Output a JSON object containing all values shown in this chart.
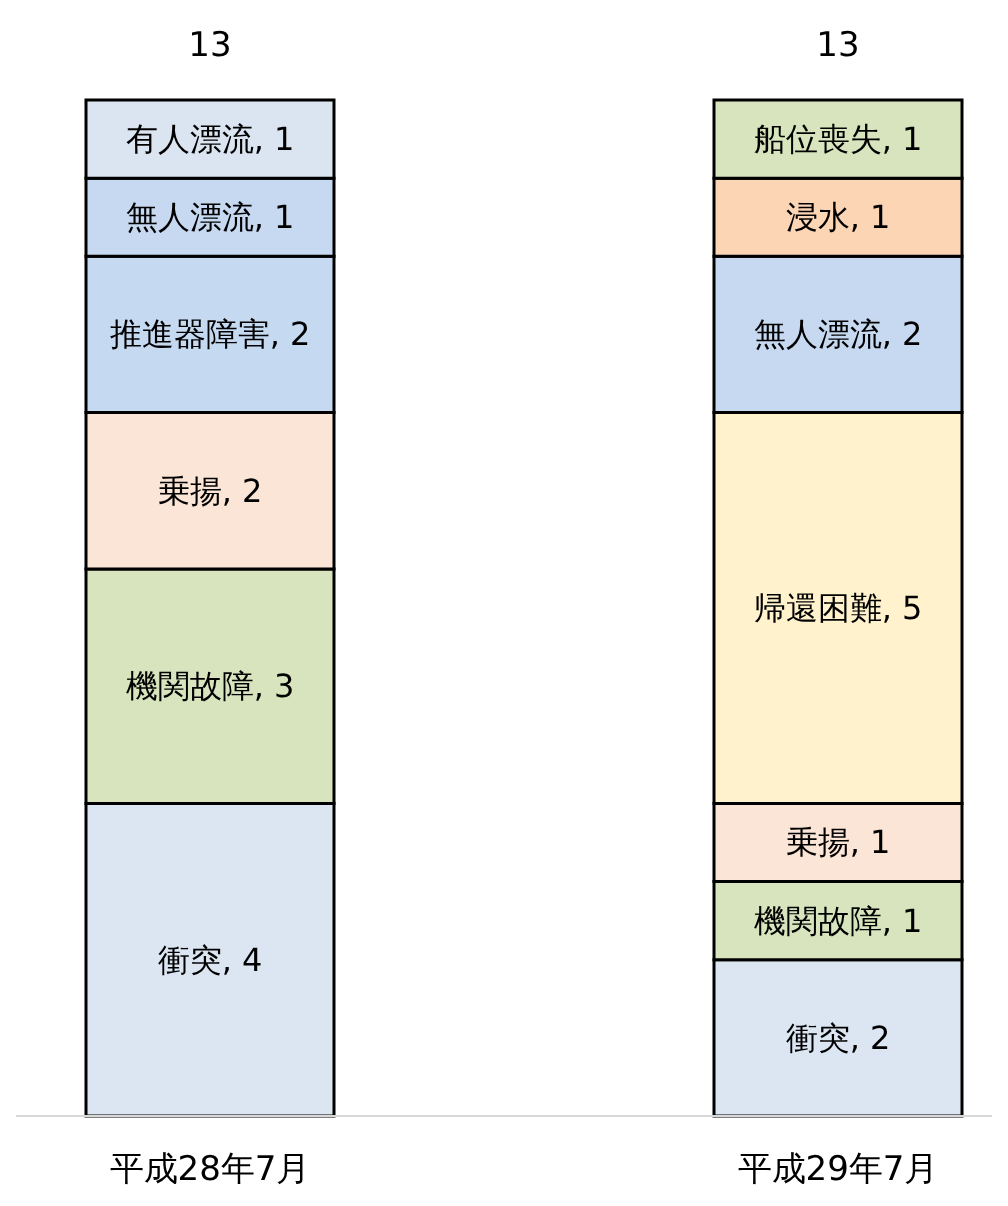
{
  "chart_data": {
    "type": "bar",
    "stacked": true,
    "categories": [
      "平成28年7月",
      "平成29年7月"
    ],
    "series": [
      {
        "color": "#dce6f2",
        "values": [
          4,
          2
        ],
        "value_labels": [
          "衝突, 4",
          "衝突, 2"
        ]
      },
      {
        "color": "#d7e4bd",
        "values": [
          3,
          1
        ],
        "value_labels": [
          "機関故障, 3",
          "機関故障, 1"
        ]
      },
      {
        "color": "#fbe5d6",
        "values": [
          2,
          1
        ],
        "value_labels": [
          "乗揚, 2",
          "乗揚, 1"
        ]
      },
      {
        "color": "#c5d9f1",
        "values": [
          2,
          null
        ],
        "value_labels": [
          "推進器障害, 2",
          null
        ]
      },
      {
        "color": "#fff2cc",
        "values": [
          null,
          5
        ],
        "value_labels": [
          null,
          "帰還困難, 5"
        ]
      },
      {
        "color": "#c6d9f1",
        "values": [
          1,
          2
        ],
        "value_labels": [
          "無人漂流, 1",
          "無人漂流, 2"
        ]
      },
      {
        "color": "#dbe5f1",
        "values": [
          1,
          null
        ],
        "value_labels": [
          "有人漂流, 1",
          null
        ]
      },
      {
        "color": "#fcd5b5",
        "values": [
          null,
          1
        ],
        "value_labels": [
          null,
          "浸水, 1"
        ]
      },
      {
        "color": "#d7e4bd",
        "values": [
          null,
          1
        ],
        "value_labels": [
          null,
          "船位喪失, 1"
        ]
      }
    ],
    "totals": [
      "13",
      "13"
    ],
    "legend": false,
    "grid": false
  }
}
